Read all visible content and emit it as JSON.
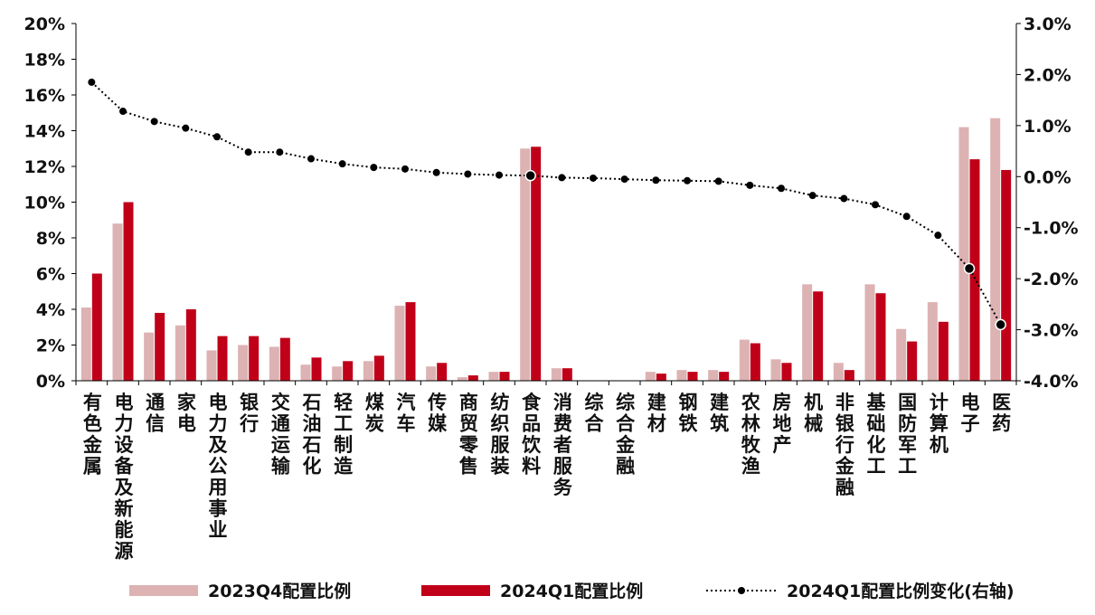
{
  "chart_data": {
    "type": "bar",
    "categories": [
      "有色金属",
      "电力设备及新能源",
      "通信",
      "家电",
      "电力及公用事业",
      "银行",
      "交通运输",
      "石油石化",
      "轻工制造",
      "煤炭",
      "汽车",
      "传媒",
      "商贸零售",
      "纺织服装",
      "食品饮料",
      "消费者服务",
      "综合",
      "综合金融",
      "建材",
      "钢铁",
      "建筑",
      "农林牧渔",
      "房地产",
      "机械",
      "非银行金融",
      "基础化工",
      "国防军工",
      "计算机",
      "电子",
      "医药"
    ],
    "series": [
      {
        "name": "2023Q4配置比例",
        "axis": "left",
        "type": "bar",
        "color": "#DDB2B3",
        "values": [
          4.1,
          8.8,
          2.7,
          3.1,
          1.7,
          2.0,
          1.9,
          0.9,
          0.8,
          1.1,
          4.2,
          0.8,
          0.2,
          0.5,
          13.0,
          0.7,
          0,
          0,
          0.5,
          0.6,
          0.6,
          2.3,
          1.2,
          5.4,
          1.0,
          5.4,
          2.9,
          4.4,
          14.2,
          14.7
        ]
      },
      {
        "name": "2024Q1配置比例",
        "axis": "left",
        "type": "bar",
        "color": "#C00018",
        "values": [
          6.0,
          10.0,
          3.8,
          4.0,
          2.5,
          2.5,
          2.4,
          1.3,
          1.1,
          1.4,
          4.4,
          1.0,
          0.3,
          0.5,
          13.1,
          0.7,
          0,
          0,
          0.4,
          0.5,
          0.5,
          2.1,
          1.0,
          5.0,
          0.6,
          4.9,
          2.2,
          3.3,
          12.4,
          11.8
        ]
      },
      {
        "name": "2024Q1配置比例变化(右轴)",
        "axis": "right",
        "type": "line",
        "style": "dotted",
        "color": "#000000",
        "values": [
          1.85,
          1.28,
          1.08,
          0.95,
          0.78,
          0.48,
          0.48,
          0.35,
          0.25,
          0.18,
          0.15,
          0.08,
          0.05,
          0.03,
          0.02,
          -0.02,
          -0.03,
          -0.05,
          -0.07,
          -0.08,
          -0.09,
          -0.17,
          -0.23,
          -0.37,
          -0.43,
          -0.55,
          -0.78,
          -1.15,
          -1.8,
          -2.9
        ]
      }
    ],
    "y_left": {
      "min": 0,
      "max": 20,
      "step": 2,
      "ticks": [
        "0%",
        "2%",
        "4%",
        "6%",
        "8%",
        "10%",
        "12%",
        "14%",
        "16%",
        "18%",
        "20%"
      ]
    },
    "y_right": {
      "min": -4,
      "max": 3,
      "step": 1,
      "ticks": [
        "-4.0%",
        "-3.0%",
        "-2.0%",
        "-1.0%",
        "0.0%",
        "1.0%",
        "2.0%",
        "3.0%"
      ]
    },
    "grid": false,
    "legend_position": "bottom",
    "line_highlight_indices": [
      14,
      28,
      29
    ]
  }
}
